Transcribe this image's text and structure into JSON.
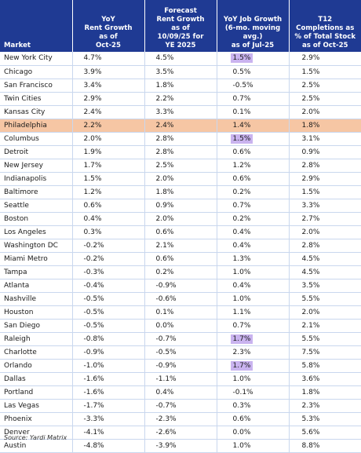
{
  "table": {
    "headers": [
      "Market",
      "YoY\nRent Growth\nas of\nOct-25",
      "Forecast\nRent Growth\nas of\n10/09/25 for\nYE 2025",
      "YoY Job Growth\n(6-mo. moving avg.)\nas of Jul-25",
      "T12\nCompletions as\n% of Total Stock\nas of Oct-25"
    ],
    "rows": [
      {
        "market": "New York City",
        "values": [
          "4.7%",
          "4.5%",
          "1.5%",
          "2.9%"
        ],
        "highlight": false,
        "chip": [
          false,
          false,
          true,
          false
        ]
      },
      {
        "market": "Chicago",
        "values": [
          "3.9%",
          "3.5%",
          "0.5%",
          "1.5%"
        ],
        "highlight": false,
        "chip": [
          false,
          false,
          false,
          false
        ]
      },
      {
        "market": "San Francisco",
        "values": [
          "3.4%",
          "1.8%",
          "-0.5%",
          "2.5%"
        ],
        "highlight": false,
        "chip": [
          false,
          false,
          false,
          false
        ]
      },
      {
        "market": "Twin Cities",
        "values": [
          "2.9%",
          "2.2%",
          "0.7%",
          "2.5%"
        ],
        "highlight": false,
        "chip": [
          false,
          false,
          false,
          false
        ]
      },
      {
        "market": "Kansas City",
        "values": [
          "2.4%",
          "3.3%",
          "0.1%",
          "2.0%"
        ],
        "highlight": false,
        "chip": [
          false,
          false,
          false,
          false
        ]
      },
      {
        "market": "Philadelphia",
        "values": [
          "2.2%",
          "2.4%",
          "1.4%",
          "1.8%"
        ],
        "highlight": true,
        "chip": [
          false,
          false,
          false,
          false
        ]
      },
      {
        "market": "Columbus",
        "values": [
          "2.0%",
          "2.8%",
          "1.5%",
          "3.1%"
        ],
        "highlight": false,
        "chip": [
          false,
          false,
          true,
          false
        ]
      },
      {
        "market": "Detroit",
        "values": [
          "1.9%",
          "2.8%",
          "0.6%",
          "0.9%"
        ],
        "highlight": false,
        "chip": [
          false,
          false,
          false,
          false
        ]
      },
      {
        "market": "New Jersey",
        "values": [
          "1.7%",
          "2.5%",
          "1.2%",
          "2.8%"
        ],
        "highlight": false,
        "chip": [
          false,
          false,
          false,
          false
        ]
      },
      {
        "market": "Indianapolis",
        "values": [
          "1.5%",
          "2.0%",
          "0.6%",
          "2.9%"
        ],
        "highlight": false,
        "chip": [
          false,
          false,
          false,
          false
        ]
      },
      {
        "market": "Baltimore",
        "values": [
          "1.2%",
          "1.8%",
          "0.2%",
          "1.5%"
        ],
        "highlight": false,
        "chip": [
          false,
          false,
          false,
          false
        ]
      },
      {
        "market": "Seattle",
        "values": [
          "0.6%",
          "0.9%",
          "0.7%",
          "3.3%"
        ],
        "highlight": false,
        "chip": [
          false,
          false,
          false,
          false
        ]
      },
      {
        "market": "Boston",
        "values": [
          "0.4%",
          "2.0%",
          "0.2%",
          "2.7%"
        ],
        "highlight": false,
        "chip": [
          false,
          false,
          false,
          false
        ]
      },
      {
        "market": "Los Angeles",
        "values": [
          "0.3%",
          "0.6%",
          "0.4%",
          "2.0%"
        ],
        "highlight": false,
        "chip": [
          false,
          false,
          false,
          false
        ]
      },
      {
        "market": "Washington DC",
        "values": [
          "-0.2%",
          "2.1%",
          "0.4%",
          "2.8%"
        ],
        "highlight": false,
        "chip": [
          false,
          false,
          false,
          false
        ]
      },
      {
        "market": "Miami Metro",
        "values": [
          "-0.2%",
          "0.6%",
          "1.3%",
          "4.5%"
        ],
        "highlight": false,
        "chip": [
          false,
          false,
          false,
          false
        ]
      },
      {
        "market": "Tampa",
        "values": [
          "-0.3%",
          "0.2%",
          "1.0%",
          "4.5%"
        ],
        "highlight": false,
        "chip": [
          false,
          false,
          false,
          false
        ]
      },
      {
        "market": "Atlanta",
        "values": [
          "-0.4%",
          "-0.9%",
          "0.4%",
          "3.5%"
        ],
        "highlight": false,
        "chip": [
          false,
          false,
          false,
          false
        ]
      },
      {
        "market": "Nashville",
        "values": [
          "-0.5%",
          "-0.6%",
          "1.0%",
          "5.5%"
        ],
        "highlight": false,
        "chip": [
          false,
          false,
          false,
          false
        ]
      },
      {
        "market": "Houston",
        "values": [
          "-0.5%",
          "0.1%",
          "1.1%",
          "2.0%"
        ],
        "highlight": false,
        "chip": [
          false,
          false,
          false,
          false
        ]
      },
      {
        "market": "San Diego",
        "values": [
          "-0.5%",
          "0.0%",
          "0.7%",
          "2.1%"
        ],
        "highlight": false,
        "chip": [
          false,
          false,
          false,
          false
        ]
      },
      {
        "market": "Raleigh",
        "values": [
          "-0.8%",
          "-0.7%",
          "1.7%",
          "5.5%"
        ],
        "highlight": false,
        "chip": [
          false,
          false,
          true,
          false
        ]
      },
      {
        "market": "Charlotte",
        "values": [
          "-0.9%",
          "-0.5%",
          "2.3%",
          "7.5%"
        ],
        "highlight": false,
        "chip": [
          false,
          false,
          false,
          false
        ]
      },
      {
        "market": "Orlando",
        "values": [
          "-1.0%",
          "-0.9%",
          "1.7%",
          "5.8%"
        ],
        "highlight": false,
        "chip": [
          false,
          false,
          true,
          false
        ]
      },
      {
        "market": "Dallas",
        "values": [
          "-1.6%",
          "-1.1%",
          "1.0%",
          "3.6%"
        ],
        "highlight": false,
        "chip": [
          false,
          false,
          false,
          false
        ]
      },
      {
        "market": "Portland",
        "values": [
          "-1.6%",
          "0.4%",
          "-0.1%",
          "1.8%"
        ],
        "highlight": false,
        "chip": [
          false,
          false,
          false,
          false
        ]
      },
      {
        "market": "Las Vegas",
        "values": [
          "-1.7%",
          "-0.7%",
          "0.3%",
          "2.3%"
        ],
        "highlight": false,
        "chip": [
          false,
          false,
          false,
          false
        ]
      },
      {
        "market": "Phoenix",
        "values": [
          "-3.3%",
          "-2.3%",
          "0.6%",
          "5.3%"
        ],
        "highlight": false,
        "chip": [
          false,
          false,
          false,
          false
        ]
      },
      {
        "market": "Denver",
        "values": [
          "-4.1%",
          "-2.6%",
          "0.0%",
          "5.6%"
        ],
        "highlight": false,
        "chip": [
          false,
          false,
          false,
          false
        ]
      },
      {
        "market": "Austin",
        "values": [
          "-4.8%",
          "-3.9%",
          "1.0%",
          "8.8%"
        ],
        "highlight": false,
        "chip": [
          false,
          false,
          false,
          false
        ]
      }
    ]
  },
  "colors": {
    "header_bg": "#1f3a93",
    "row_highlight": "#f6c6a4",
    "cell_chip": "#c9b3ef",
    "grid_line": "#c9d7ee"
  },
  "source": "Source: Yardi Matrix"
}
